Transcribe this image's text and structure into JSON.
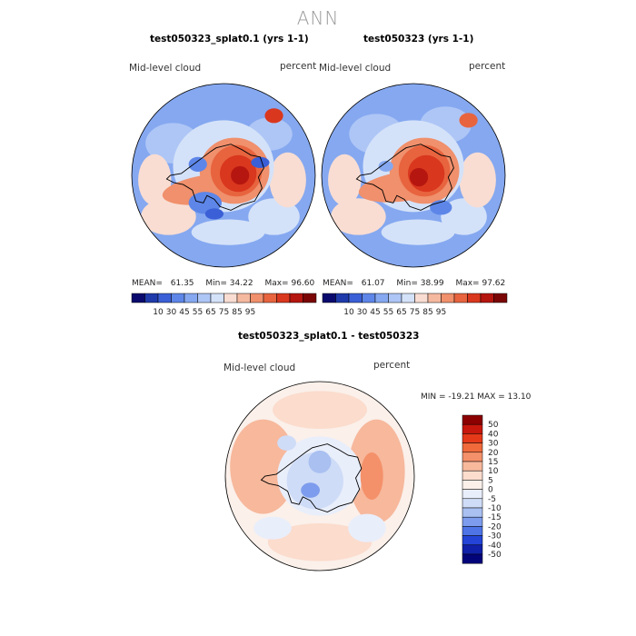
{
  "title": "ANN",
  "panels": [
    {
      "title": "test050323_splat0.1 (yrs 1-1)",
      "variable_label": "Mid-level cloud",
      "units_label": "percent",
      "stats": {
        "mean_label": "MEAN=",
        "mean": "61.35",
        "min_label": "Min=",
        "min": "34.22",
        "max_label": "Max=",
        "max": "96.60"
      }
    },
    {
      "title": "test050323 (yrs 1-1)",
      "variable_label": "Mid-level cloud",
      "units_label": "percent",
      "stats": {
        "mean_label": "MEAN=",
        "mean": "61.07",
        "min_label": "Min=",
        "min": "38.99",
        "max_label": "Max=",
        "max": "97.62"
      }
    }
  ],
  "shared_colorbar": {
    "colors": [
      "#0a0a6e",
      "#1f3aaa",
      "#3a5fd6",
      "#5d86e8",
      "#85a8f0",
      "#aec6f6",
      "#d4e2f9",
      "#f9ddd2",
      "#f5b9a0",
      "#f0906c",
      "#e7643f",
      "#d9371e",
      "#b5160f",
      "#7a0606"
    ],
    "tick_labels": [
      "10",
      "30",
      "45",
      "55",
      "65",
      "75",
      "85",
      "95"
    ]
  },
  "diff_panel": {
    "title": "test050323_splat0.1 - test050323",
    "variable_label": "Mid-level cloud",
    "units_label": "percent",
    "minmax_text": "MIN = -19.21 MAX =  13.10",
    "colorbar": {
      "colors": [
        "#8b0000",
        "#c8170c",
        "#e5391a",
        "#f06a3c",
        "#f4916a",
        "#f7b89c",
        "#fbdccd",
        "#fbf0ea",
        "#e9eefb",
        "#cfdcf7",
        "#a9c0f1",
        "#7d9ced",
        "#4e74e6",
        "#2344d6",
        "#1020a8",
        "#04047a"
      ],
      "tick_labels": [
        "50",
        "40",
        "30",
        "20",
        "15",
        "10",
        "5",
        "0",
        "-5",
        "-10",
        "-15",
        "-20",
        "-30",
        "-40",
        "-50"
      ]
    }
  },
  "map_colors": {
    "coastline": "#000000",
    "outline": "#000000"
  }
}
